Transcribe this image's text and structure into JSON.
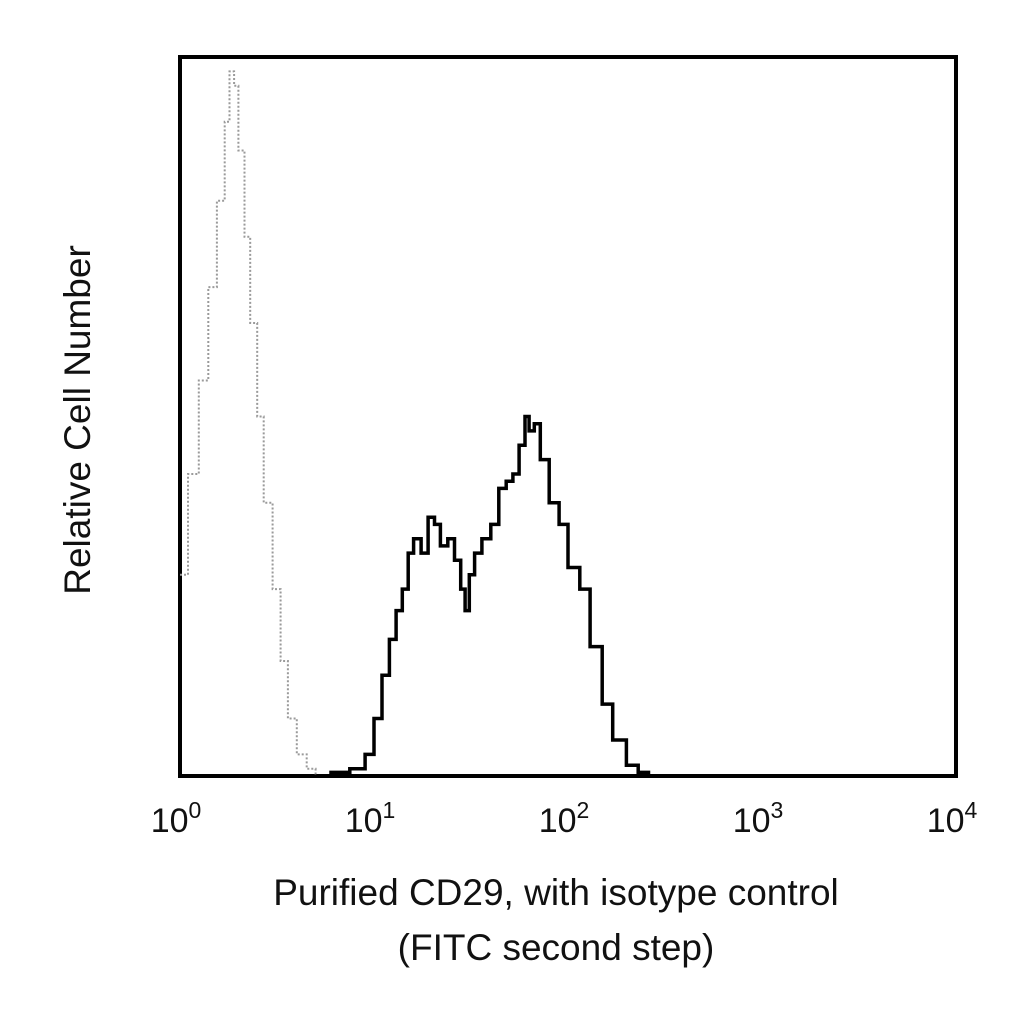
{
  "chart_data": {
    "type": "line",
    "xlabel": [
      "Purified CD29, with isotype control",
      "(FITC second step)"
    ],
    "ylabel": "Relative Cell Number",
    "x_scale": "log",
    "xlim": [
      1,
      10000
    ],
    "ylim": [
      0,
      100
    ],
    "grid": false,
    "x_ticks": [
      {
        "base": "10",
        "exp": "0",
        "value": 1
      },
      {
        "base": "10",
        "exp": "1",
        "value": 10
      },
      {
        "base": "10",
        "exp": "2",
        "value": 100
      },
      {
        "base": "10",
        "exp": "3",
        "value": 1000
      },
      {
        "base": "10",
        "exp": "4",
        "value": 10000
      }
    ],
    "series": [
      {
        "color": "#9a9a9a",
        "style": "dotted",
        "x": [
          1.0,
          1.1,
          1.25,
          1.4,
          1.55,
          1.7,
          1.8,
          1.9,
          2.0,
          2.15,
          2.3,
          2.5,
          2.7,
          3.0,
          3.3,
          3.6,
          4.0,
          4.5,
          5.0,
          6.0
        ],
        "y": [
          28,
          42,
          55,
          68,
          80,
          91,
          98,
          96,
          87,
          75,
          63,
          50,
          38,
          26,
          16,
          8,
          3,
          1,
          0,
          0
        ]
      },
      {
        "color": "#000000",
        "style": "solid",
        "x": [
          5.0,
          6.0,
          7.5,
          9.0,
          10.0,
          11.0,
          12.0,
          13.0,
          14.0,
          15.0,
          16.0,
          17.5,
          19.0,
          20.5,
          22.0,
          24.0,
          26.0,
          28.0,
          29.5,
          31.0,
          33.0,
          36.0,
          40.0,
          44.0,
          48.0,
          52.0,
          56.0,
          60.0,
          63.0,
          67.0,
          72.0,
          80.0,
          90.0,
          100.0,
          115.0,
          130.0,
          150.0,
          170.0,
          200.0,
          230.0,
          260.0,
          290.0
        ],
        "y": [
          0,
          0.5,
          1,
          3,
          8,
          14,
          19,
          23,
          26,
          31,
          33,
          31,
          36,
          35,
          32,
          33,
          30,
          26,
          23,
          28,
          31,
          33,
          35,
          40,
          41,
          42,
          46,
          50,
          48,
          49,
          44,
          38,
          35,
          29,
          26,
          18,
          10,
          5,
          1.5,
          0.5,
          0,
          0
        ]
      }
    ]
  }
}
